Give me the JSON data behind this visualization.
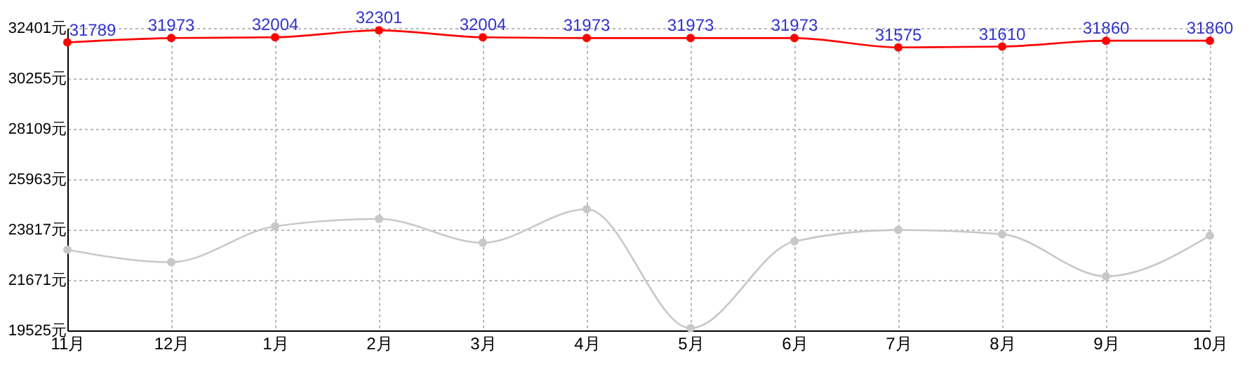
{
  "chart_data": {
    "type": "line",
    "categories": [
      "11月",
      "12月",
      "1月",
      "2月",
      "3月",
      "4月",
      "5月",
      "6月",
      "7月",
      "8月",
      "9月",
      "10月"
    ],
    "series": [
      {
        "color": "#ff0000",
        "values": [
          31789,
          31973,
          32004,
          32301,
          32004,
          31973,
          31973,
          31973,
          31575,
          31610,
          31860,
          31860
        ],
        "value_labels": [
          "31789",
          "31973",
          "32004",
          "32301",
          "32004",
          "31973",
          "31973",
          "31973",
          "31575",
          "31610",
          "31860",
          "31860"
        ]
      },
      {
        "color": "#c8c8c8",
        "values": [
          22960,
          22430,
          23960,
          24270,
          23260,
          24690,
          19620,
          23320,
          23800,
          23620,
          21830,
          23560
        ]
      }
    ],
    "ylim": [
      19525,
      32401
    ],
    "yticks": [
      {
        "value": 19525,
        "label": "19525元"
      },
      {
        "value": 21671,
        "label": "21671元"
      },
      {
        "value": 23817,
        "label": "23817元"
      },
      {
        "value": 25963,
        "label": "25963元"
      },
      {
        "value": 28109,
        "label": "28109元"
      },
      {
        "value": 30255,
        "label": "30255元"
      },
      {
        "value": 32401,
        "label": "32401元"
      }
    ],
    "grid": true,
    "marker": "circle",
    "line_style": "solid"
  }
}
